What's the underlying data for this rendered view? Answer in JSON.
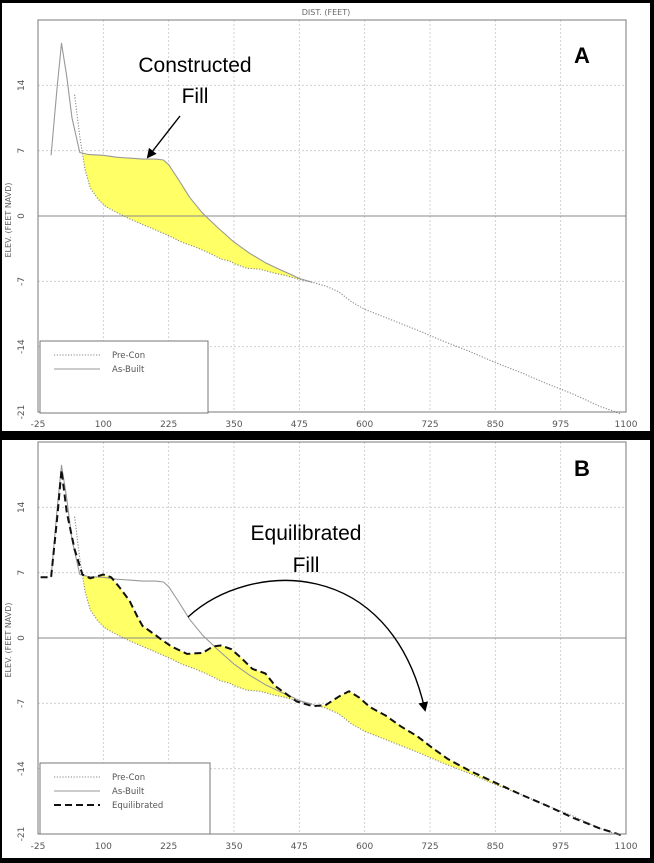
{
  "chart_data": [
    {
      "panel_label": "A",
      "type": "line",
      "title": "DIST. (FEET)",
      "ylabel": "ELEV. (FEET NAVD)",
      "xlim": [
        -25,
        1100
      ],
      "ylim": [
        -21,
        21
      ],
      "xticks": [
        -25,
        100,
        225,
        350,
        475,
        600,
        725,
        850,
        975,
        1100
      ],
      "yticks": [
        -21,
        -14,
        -7,
        0,
        7,
        14
      ],
      "grid": true,
      "legend": {
        "placement": "bottom-left",
        "entries": [
          {
            "label": "Pre-Con",
            "style": "dotted"
          },
          {
            "label": "As-Built",
            "style": "solid"
          }
        ]
      },
      "annotations": [
        {
          "text": [
            "Constructed",
            "Fill"
          ],
          "arrow": true
        }
      ],
      "fill_color": "#ffff66",
      "series": [
        {
          "name": "Pre-Con",
          "style": "dotted",
          "x": [
            45,
            55,
            65,
            75,
            90,
            105,
            125,
            150,
            175,
            200,
            225,
            250,
            275,
            300,
            325,
            345,
            350,
            375,
            400,
            425,
            450,
            475,
            500,
            525,
            550,
            575,
            600,
            650,
            700,
            750,
            800,
            850,
            900,
            950,
            1000,
            1050,
            1090
          ],
          "y": [
            13.0,
            8.5,
            5.0,
            3.0,
            1.8,
            1.0,
            0.4,
            -0.3,
            -0.9,
            -1.5,
            -2.1,
            -2.8,
            -3.3,
            -3.9,
            -4.6,
            -4.9,
            -5.1,
            -5.6,
            -5.7,
            -6.1,
            -6.4,
            -6.8,
            -7.1,
            -7.5,
            -8.1,
            -9.2,
            -10.0,
            -11.1,
            -12.2,
            -13.4,
            -14.5,
            -15.7,
            -16.8,
            -18.0,
            -19.1,
            -20.4,
            -21.2
          ]
        },
        {
          "name": "As-Built",
          "style": "solid",
          "x": [
            0,
            12,
            20,
            30,
            40,
            55,
            70,
            100,
            125,
            150,
            175,
            200,
            215,
            225,
            245,
            265,
            290,
            320,
            350,
            380,
            410,
            440,
            460,
            475,
            500
          ],
          "y": [
            6.5,
            14.0,
            18.5,
            15.0,
            10.5,
            6.8,
            6.6,
            6.5,
            6.3,
            6.2,
            6.1,
            6.1,
            6.0,
            5.5,
            3.8,
            2.0,
            0.3,
            -1.3,
            -2.8,
            -4.0,
            -5.0,
            -5.8,
            -6.3,
            -6.7,
            -7.1
          ]
        }
      ]
    },
    {
      "panel_label": "B",
      "type": "line",
      "title": "",
      "ylabel": "ELEV. (FEET NAVD)",
      "xlim": [
        -25,
        1100
      ],
      "ylim": [
        -21,
        21
      ],
      "xticks": [
        -25,
        100,
        225,
        350,
        475,
        600,
        725,
        850,
        975,
        1100
      ],
      "yticks": [
        -21,
        -14,
        -7,
        0,
        7,
        14
      ],
      "grid": true,
      "legend": {
        "placement": "bottom-left",
        "entries": [
          {
            "label": "Pre-Con",
            "style": "dotted"
          },
          {
            "label": "As-Built",
            "style": "solid"
          },
          {
            "label": "Equilibrated",
            "style": "dashed"
          }
        ]
      },
      "annotations": [
        {
          "text": [
            "Equilibrated",
            "Fill"
          ],
          "arrow": true
        }
      ],
      "fill_color": "#ffff66",
      "series": [
        {
          "name": "Pre-Con",
          "style": "dotted",
          "x": [
            45,
            55,
            65,
            75,
            90,
            105,
            125,
            150,
            175,
            200,
            225,
            250,
            275,
            300,
            325,
            345,
            350,
            375,
            400,
            425,
            450,
            475,
            500,
            525,
            550,
            575,
            600,
            650,
            700,
            750,
            800,
            850,
            900,
            950,
            1000,
            1050,
            1090
          ],
          "y": [
            13.0,
            8.5,
            5.0,
            3.0,
            1.8,
            1.0,
            0.4,
            -0.3,
            -0.9,
            -1.5,
            -2.1,
            -2.8,
            -3.3,
            -3.9,
            -4.6,
            -4.9,
            -5.1,
            -5.6,
            -5.7,
            -6.1,
            -6.4,
            -6.8,
            -7.1,
            -7.5,
            -8.1,
            -9.2,
            -10.0,
            -11.1,
            -12.2,
            -13.4,
            -14.5,
            -15.7,
            -16.8,
            -18.0,
            -19.1,
            -20.4,
            -21.2
          ]
        },
        {
          "name": "As-Built",
          "style": "solid",
          "x": [
            0,
            12,
            20,
            30,
            40,
            55,
            70,
            100,
            125,
            150,
            175,
            200,
            215,
            225,
            245,
            265,
            290,
            320,
            350,
            380,
            410,
            440,
            460,
            475,
            500
          ],
          "y": [
            6.5,
            14.0,
            18.5,
            15.0,
            10.5,
            6.8,
            6.6,
            6.5,
            6.3,
            6.2,
            6.1,
            6.1,
            6.0,
            5.5,
            3.8,
            2.0,
            0.3,
            -1.3,
            -2.8,
            -4.0,
            -5.0,
            -5.8,
            -6.3,
            -6.7,
            -7.1
          ]
        },
        {
          "name": "Equilibrated",
          "style": "dashed",
          "x": [
            -20,
            0,
            12,
            20,
            30,
            45,
            60,
            75,
            100,
            115,
            130,
            150,
            165,
            175,
            190,
            200,
            212,
            230,
            260,
            290,
            310,
            325,
            345,
            365,
            385,
            410,
            430,
            450,
            470,
            500,
            525,
            550,
            570,
            590,
            610,
            640,
            670,
            700,
            730,
            760,
            800,
            850,
            900,
            950,
            1000,
            1050,
            1090
          ],
          "y": [
            6.5,
            6.5,
            13.0,
            18.0,
            13.5,
            9.5,
            6.8,
            6.4,
            6.8,
            6.5,
            5.5,
            4.0,
            2.3,
            1.3,
            0.7,
            0.3,
            -0.2,
            -0.9,
            -1.7,
            -1.6,
            -0.9,
            -0.8,
            -1.2,
            -2.2,
            -3.3,
            -3.8,
            -5.2,
            -6.0,
            -6.8,
            -7.3,
            -7.2,
            -6.3,
            -5.7,
            -6.4,
            -7.4,
            -8.3,
            -9.5,
            -10.5,
            -11.8,
            -13.0,
            -14.2,
            -15.5,
            -16.8,
            -18.0,
            -19.3,
            -20.4,
            -21.1
          ]
        }
      ]
    }
  ]
}
